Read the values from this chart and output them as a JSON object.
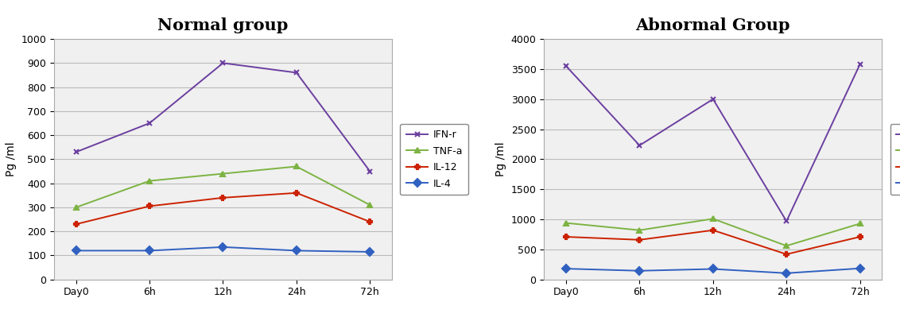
{
  "normal": {
    "title": "Normal group",
    "xlabel_ticks": [
      "Day0",
      "6h",
      "12h",
      "24h",
      "72h"
    ],
    "ylabel": "Pg /ml",
    "ylim": [
      0,
      1000
    ],
    "yticks": [
      0,
      100,
      200,
      300,
      400,
      500,
      600,
      700,
      800,
      900,
      1000
    ],
    "series": {
      "IFN-r": {
        "values": [
          530,
          650,
          900,
          860,
          450
        ],
        "color": "#6B3FA0",
        "marker": "x",
        "linestyle": "-"
      },
      "TNF-a": {
        "values": [
          300,
          410,
          440,
          470,
          310
        ],
        "color": "#7CB342",
        "marker": "^",
        "linestyle": "-"
      },
      "IL-12": {
        "values": [
          230,
          305,
          340,
          360,
          240
        ],
        "color": "#CC2200",
        "marker": "P",
        "linestyle": "-"
      },
      "IL-4": {
        "values": [
          120,
          120,
          135,
          120,
          115
        ],
        "color": "#3060C0",
        "marker": "D",
        "linestyle": "-"
      }
    }
  },
  "abnormal": {
    "title": "Abnormal Group",
    "xlabel_ticks": [
      "Day0",
      "6h",
      "12h",
      "24h",
      "72h"
    ],
    "ylabel": "Pg /ml",
    "ylim": [
      0,
      4000
    ],
    "yticks": [
      0,
      500,
      1000,
      1500,
      2000,
      2500,
      3000,
      3500,
      4000
    ],
    "series": {
      "IFN-r": {
        "values": [
          3550,
          2230,
          3000,
          970,
          3580
        ],
        "color": "#6B3FA0",
        "marker": "x",
        "linestyle": "-"
      },
      "TNF-a": {
        "values": [
          940,
          820,
          1010,
          560,
          930
        ],
        "color": "#7CB342",
        "marker": "^",
        "linestyle": "-"
      },
      "IL-12": {
        "values": [
          710,
          660,
          820,
          420,
          710
        ],
        "color": "#CC2200",
        "marker": "P",
        "linestyle": "-"
      },
      "IL-4": {
        "values": [
          180,
          145,
          175,
          105,
          185
        ],
        "color": "#3060C0",
        "marker": "D",
        "linestyle": "-"
      }
    }
  },
  "fig_bg": "#f0f0f0",
  "plot_bg": "#f0f0f0",
  "grid_color": "#bbbbbb",
  "title_fontsize": 15,
  "label_fontsize": 10,
  "tick_fontsize": 9,
  "legend_fontsize": 9
}
